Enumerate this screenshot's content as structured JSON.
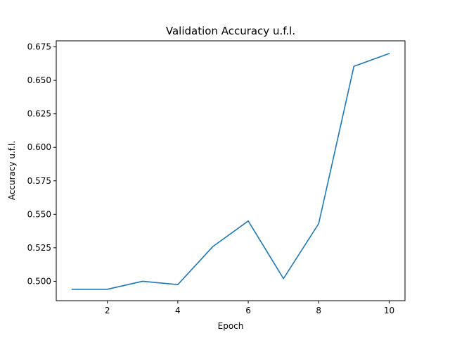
{
  "chart_data": {
    "type": "line",
    "title": "Validation Accuracy u.f.l.",
    "xlabel": "Epoch",
    "ylabel": "Accuracy u.f.l.",
    "xlim": [
      0.55,
      10.45
    ],
    "ylim": [
      0.4855,
      0.6795
    ],
    "xticks": [
      2,
      4,
      6,
      8,
      10
    ],
    "yticks": [
      0.5,
      0.525,
      0.55,
      0.575,
      0.6,
      0.625,
      0.65,
      0.675
    ],
    "ytick_labels": [
      "0.500",
      "0.525",
      "0.550",
      "0.575",
      "0.600",
      "0.625",
      "0.650",
      "0.675"
    ],
    "grid": false,
    "legend": "none",
    "series": [
      {
        "color": "#1f77b4",
        "x": [
          1,
          2,
          3,
          4,
          5,
          6,
          7,
          8,
          9,
          10
        ],
        "y": [
          0.494,
          0.494,
          0.5,
          0.4975,
          0.526,
          0.545,
          0.502,
          0.543,
          0.6605,
          0.67
        ]
      }
    ]
  }
}
